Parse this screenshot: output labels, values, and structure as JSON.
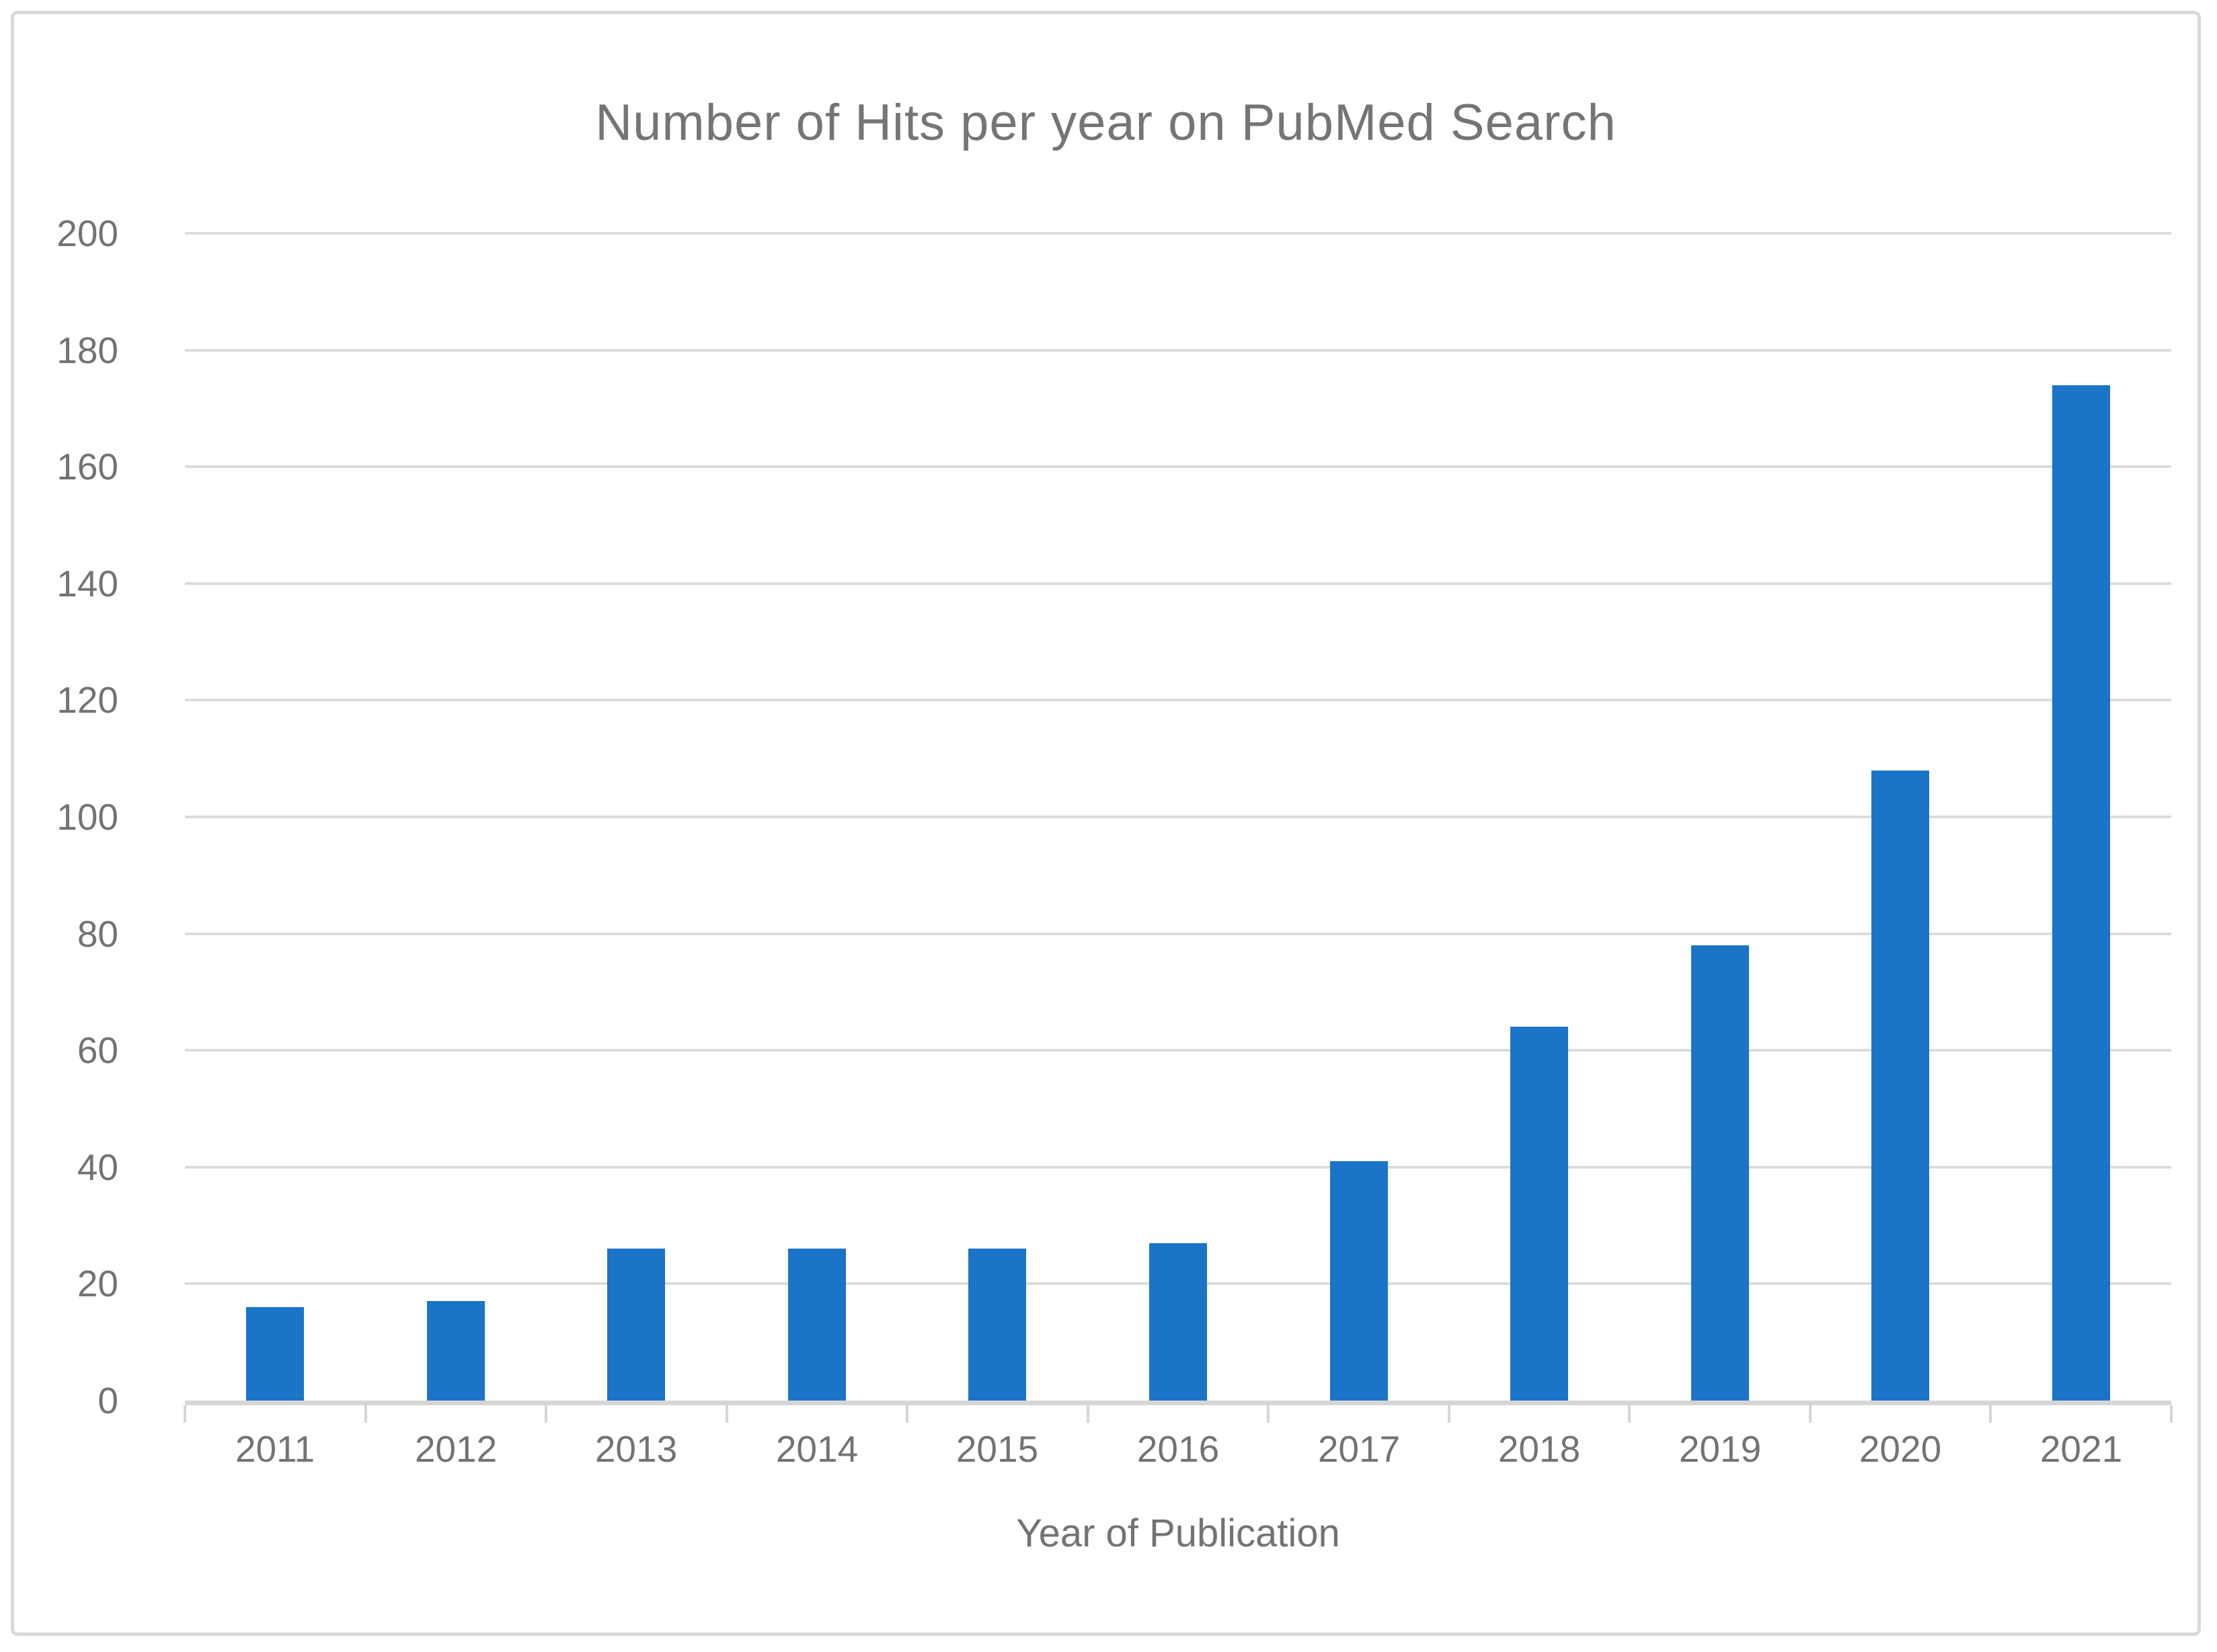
{
  "chart_data": {
    "type": "bar",
    "title": "Number of Hits per year on PubMed Search",
    "xlabel": "Year of Publication",
    "ylabel": "",
    "categories": [
      "2011",
      "2012",
      "2013",
      "2014",
      "2015",
      "2016",
      "2017",
      "2018",
      "2019",
      "2020",
      "2021"
    ],
    "values": [
      16,
      17,
      26,
      26,
      26,
      27,
      41,
      64,
      78,
      108,
      174
    ],
    "ylim": [
      0,
      200
    ],
    "ytick_step": 20,
    "ytick_labels": [
      "0",
      "20",
      "40",
      "60",
      "80",
      "100",
      "120",
      "140",
      "160",
      "180",
      "200"
    ],
    "grid": true,
    "legend_position": "none",
    "colors": {
      "bar": "#1b74c8",
      "gridline": "#dcdcdc",
      "axis_line": "#d6d6d6",
      "text": "#737373",
      "title_text": "#757575",
      "frame_border": "#d9d9d9",
      "background": "#ffffff"
    }
  }
}
